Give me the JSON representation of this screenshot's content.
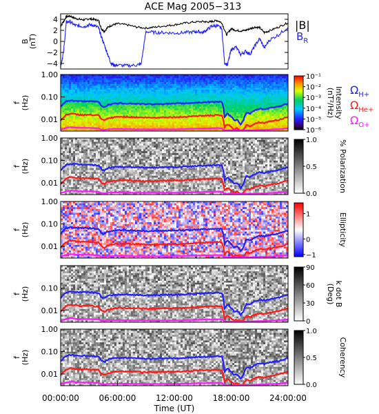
{
  "figure": {
    "title": "ACE Mag 2005−313",
    "xlabel": "Time (UT)",
    "xticks": [
      "00:00:00",
      "06:00:00",
      "12:00:00",
      "18:00:00",
      "24:00:00"
    ],
    "colors": {
      "h": "#1f1fff",
      "he": "#ff1a1a",
      "o": "#ff19ff",
      "b": "#000000",
      "br": "#1f1fff"
    }
  },
  "chart_data": [
    {
      "type": "line",
      "panel": "B field",
      "ylabel": "B",
      "yunit": "(nT)",
      "yticks": [
        "4",
        "2",
        "0",
        "−2",
        "−4"
      ],
      "ylim": [
        -5,
        5
      ],
      "xlim": [
        0,
        24
      ],
      "legend": [
        "|B|",
        "B_R"
      ],
      "series": [
        {
          "name": "|B|",
          "color": "#000000",
          "x": [
            0,
            0.3,
            0.6,
            1,
            1.5,
            2,
            2.5,
            3,
            3.5,
            4,
            4.3,
            4.6,
            5,
            5.5,
            6,
            7,
            8,
            9,
            10,
            11,
            12,
            13,
            14,
            15,
            15.5,
            16,
            16.5,
            17,
            17.5,
            18,
            18.5,
            19,
            19.5,
            20,
            20.5,
            21,
            21.5,
            22,
            23,
            24
          ],
          "y": [
            2.8,
            3.6,
            4.5,
            4.6,
            4.2,
            4.0,
            3.9,
            4.1,
            4.0,
            3.8,
            2.3,
            1.8,
            2.6,
            3.0,
            3.2,
            3.0,
            2.6,
            2.4,
            2.6,
            2.8,
            3.0,
            3.3,
            3.5,
            3.6,
            3.5,
            3.6,
            3.8,
            3.4,
            1.2,
            2.3,
            2.0,
            1.9,
            2.0,
            2.3,
            2.6,
            2.5,
            1.6,
            1.9,
            2.6,
            3.4
          ]
        },
        {
          "name": "B_R",
          "color": "#1f1fff",
          "x": [
            0,
            0.3,
            0.6,
            1,
            1.5,
            2,
            2.5,
            3,
            3.5,
            4,
            4.3,
            4.6,
            5,
            5.3,
            5.6,
            6,
            7,
            8,
            8.5,
            9,
            10,
            11,
            12,
            13,
            14,
            14.5,
            15,
            15.5,
            16,
            16.5,
            17,
            17.3,
            17.6,
            18,
            18.5,
            19,
            19.5,
            20,
            20.5,
            21,
            21.5,
            22,
            23,
            24
          ],
          "y": [
            -4.5,
            -2.0,
            3.5,
            3.6,
            2.9,
            2.8,
            2.7,
            3.0,
            2.9,
            2.5,
            0.8,
            -0.6,
            -2.5,
            -3.9,
            -4.3,
            -4.3,
            -4.4,
            -4.3,
            -4.1,
            1.8,
            1.6,
            1.6,
            1.5,
            1.6,
            1.7,
            1.8,
            1.6,
            2.2,
            2.8,
            2.8,
            2.4,
            -3.8,
            -4.3,
            -1.5,
            -1.0,
            -2.4,
            -1.8,
            -2.3,
            -0.8,
            0.5,
            -1.2,
            0.2,
            1.2,
            2.6
          ]
        }
      ]
    },
    {
      "type": "heatmap",
      "panel": "Intensity",
      "ylabel": "f",
      "yunit": "(Hz)",
      "yticks": [
        "1.00",
        "0.10",
        "0.01"
      ],
      "ylim": [
        0.003,
        1.0
      ],
      "colorbar_label": "Intensity\n(nT²/Hz)",
      "colorbar_ticks": [
        "10⁻¹",
        "10⁻²",
        "10⁻³",
        "10⁻⁴",
        "10⁻⁵",
        "10⁻⁶"
      ],
      "colorbar_range": [
        1e-06,
        0.1
      ],
      "cyclotron_legend": [
        "ΩH+",
        "ΩHe+",
        "ΩO+"
      ]
    },
    {
      "type": "heatmap",
      "panel": "% Polarization",
      "ylabel": "f",
      "yunit": "(Hz)",
      "yticks": [
        "1.00",
        "0.10",
        "0.01"
      ],
      "ylim": [
        0.003,
        1.0
      ],
      "colorbar_label": "% Polarization",
      "colorbar_ticks": [
        "1.0",
        "0.5",
        "0.0"
      ],
      "colorbar_range": [
        0,
        1
      ]
    },
    {
      "type": "heatmap",
      "panel": "Ellipticity",
      "ylabel": "f",
      "yunit": "(Hz)",
      "yticks": [
        "1.00",
        "0.10",
        "0.01"
      ],
      "ylim": [
        0.003,
        1.0
      ],
      "colorbar_label": "Ellipticity",
      "colorbar_ticks": [
        "1",
        "0",
        "−1"
      ],
      "colorbar_range": [
        -1,
        1
      ]
    },
    {
      "type": "heatmap",
      "panel": "k dot B",
      "ylabel": "f",
      "yunit": "(Hz)",
      "yticks": [
        "0.10",
        "0.01"
      ],
      "ylim": [
        0.003,
        1.0
      ],
      "colorbar_label": "k dot B\n(Deg)",
      "colorbar_ticks": [
        "90",
        "60",
        "30",
        "0"
      ],
      "colorbar_range": [
        0,
        90
      ]
    },
    {
      "type": "heatmap",
      "panel": "Coherency",
      "ylabel": "f",
      "yunit": "(Hz)",
      "yticks": [
        "1.00",
        "0.10",
        "0.01"
      ],
      "ylim": [
        0.003,
        1.0
      ],
      "colorbar_label": "Coherency",
      "colorbar_ticks": [
        "1.0",
        "0.5",
        "0.0"
      ],
      "colorbar_range": [
        0,
        1
      ]
    }
  ],
  "cyclotron": {
    "x": [
      0,
      0.3,
      0.6,
      1,
      2,
      3,
      4,
      4.3,
      4.6,
      5,
      5.5,
      6,
      7,
      8,
      9,
      10,
      11,
      12,
      13,
      14,
      15,
      16,
      16.5,
      17,
      17.3,
      17.6,
      18,
      18.3,
      18.6,
      19,
      19.3,
      19.6,
      20,
      20.5,
      21,
      21.5,
      22,
      23,
      24
    ],
    "h": [
      0.035,
      0.05,
      0.065,
      0.07,
      0.065,
      0.065,
      0.06,
      0.04,
      0.035,
      0.045,
      0.05,
      0.052,
      0.052,
      0.05,
      0.048,
      0.048,
      0.05,
      0.05,
      0.052,
      0.055,
      0.058,
      0.06,
      0.062,
      0.06,
      0.012,
      0.018,
      0.013,
      0.009,
      0.01,
      0.006,
      0.009,
      0.02,
      0.018,
      0.025,
      0.03,
      0.028,
      0.032,
      0.038,
      0.05
    ],
    "he": [
      0.009,
      0.012,
      0.016,
      0.018,
      0.016,
      0.016,
      0.015,
      0.01,
      0.009,
      0.011,
      0.012,
      0.013,
      0.013,
      0.0125,
      0.012,
      0.012,
      0.0125,
      0.0125,
      0.013,
      0.014,
      0.0145,
      0.015,
      0.0155,
      0.015,
      0.0045,
      0.006,
      0.0045,
      0.0035,
      0.004,
      0.0032,
      0.0035,
      0.0055,
      0.005,
      0.0065,
      0.0075,
      0.007,
      0.008,
      0.0095,
      0.0125
    ],
    "o": [
      0.0035,
      0.0038,
      0.0042,
      0.0045,
      0.0042,
      0.0042,
      0.004,
      0.0035,
      0.0034,
      0.0036,
      0.0037,
      0.0037,
      0.0037,
      0.0036,
      0.0036,
      0.0036,
      0.0036,
      0.0036,
      0.0037,
      0.0038,
      0.0039,
      0.004,
      0.0041,
      0.004,
      0.0031,
      0.0032,
      0.0031,
      0.003,
      0.003,
      0.003,
      0.003,
      0.0032,
      0.0032,
      0.0033,
      0.0034,
      0.0034,
      0.0035,
      0.0037,
      0.004
    ]
  }
}
